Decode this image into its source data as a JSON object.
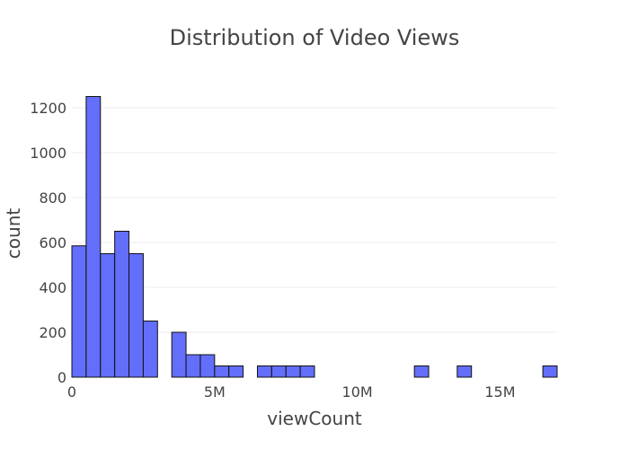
{
  "chart_data": {
    "type": "bar",
    "title": "Distribution of Video Views",
    "xlabel": "viewCount",
    "ylabel": "count",
    "xlim": [
      0,
      17000000
    ],
    "ylim": [
      0,
      1300
    ],
    "bin_width": 500000,
    "grid": true,
    "legend": "none",
    "bar_color": "#636efa",
    "x_ticks": [
      {
        "value": 0,
        "label": "0"
      },
      {
        "value": 5000000,
        "label": "5M"
      },
      {
        "value": 10000000,
        "label": "10M"
      },
      {
        "value": 15000000,
        "label": "15M"
      }
    ],
    "y_ticks": [
      {
        "value": 0,
        "label": "0"
      },
      {
        "value": 200,
        "label": "200"
      },
      {
        "value": 400,
        "label": "400"
      },
      {
        "value": 600,
        "label": "600"
      },
      {
        "value": 800,
        "label": "800"
      },
      {
        "value": 1000,
        "label": "1000"
      },
      {
        "value": 1200,
        "label": "1200"
      }
    ],
    "bins": [
      {
        "x0": 0,
        "x1": 500000,
        "count": 585
      },
      {
        "x0": 500000,
        "x1": 1000000,
        "count": 1250
      },
      {
        "x0": 1000000,
        "x1": 1500000,
        "count": 550
      },
      {
        "x0": 1500000,
        "x1": 2000000,
        "count": 650
      },
      {
        "x0": 2000000,
        "x1": 2500000,
        "count": 550
      },
      {
        "x0": 2500000,
        "x1": 3000000,
        "count": 250
      },
      {
        "x0": 3500000,
        "x1": 4000000,
        "count": 200
      },
      {
        "x0": 4000000,
        "x1": 4500000,
        "count": 100
      },
      {
        "x0": 4500000,
        "x1": 5000000,
        "count": 100
      },
      {
        "x0": 5000000,
        "x1": 5500000,
        "count": 50
      },
      {
        "x0": 5500000,
        "x1": 6000000,
        "count": 50
      },
      {
        "x0": 6500000,
        "x1": 7000000,
        "count": 50
      },
      {
        "x0": 7000000,
        "x1": 7500000,
        "count": 50
      },
      {
        "x0": 7500000,
        "x1": 8000000,
        "count": 50
      },
      {
        "x0": 8000000,
        "x1": 8500000,
        "count": 50
      },
      {
        "x0": 12000000,
        "x1": 12500000,
        "count": 50
      },
      {
        "x0": 13500000,
        "x1": 14000000,
        "count": 50
      },
      {
        "x0": 16500000,
        "x1": 17000000,
        "count": 50
      }
    ]
  }
}
